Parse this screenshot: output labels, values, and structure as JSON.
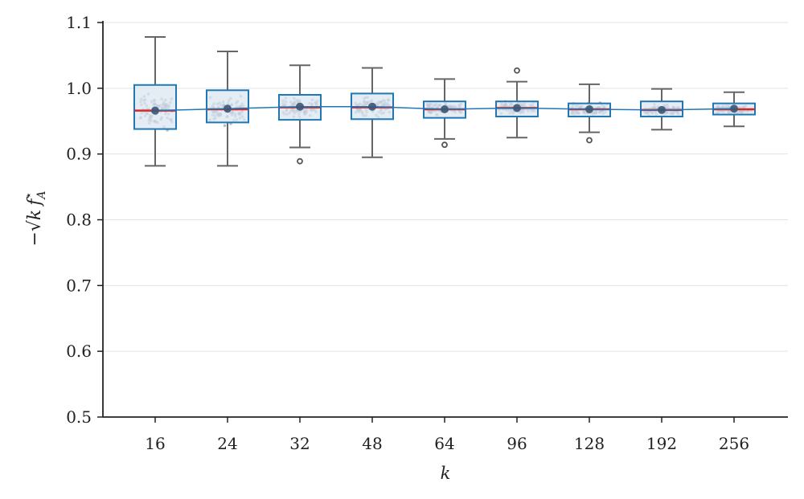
{
  "chart_data": {
    "type": "box",
    "categories": [
      "16",
      "24",
      "32",
      "48",
      "64",
      "96",
      "128",
      "192",
      "256"
    ],
    "xlabel": "k",
    "ylabel": {
      "prefix": "−√",
      "k": "k",
      "f": "f",
      "sub": "A",
      "sup": "⋆"
    },
    "ylim": [
      0.5,
      1.1
    ],
    "yticks": [
      "0.5",
      "0.6",
      "0.7",
      "0.8",
      "0.9",
      "1.0",
      "1.1"
    ],
    "grid": "horizontal",
    "boxes": [
      {
        "category": "16",
        "whislo": 0.882,
        "q1": 0.938,
        "median": 0.966,
        "q3": 1.005,
        "whishi": 1.078,
        "mean": 0.966,
        "outliers": []
      },
      {
        "category": "24",
        "whislo": 0.882,
        "q1": 0.948,
        "median": 0.968,
        "q3": 0.997,
        "whishi": 1.056,
        "mean": 0.969,
        "outliers": []
      },
      {
        "category": "32",
        "whislo": 0.91,
        "q1": 0.952,
        "median": 0.971,
        "q3": 0.99,
        "whishi": 1.035,
        "mean": 0.972,
        "outliers": [
          0.889
        ]
      },
      {
        "category": "48",
        "whislo": 0.895,
        "q1": 0.953,
        "median": 0.971,
        "q3": 0.992,
        "whishi": 1.031,
        "mean": 0.972,
        "outliers": []
      },
      {
        "category": "64",
        "whislo": 0.923,
        "q1": 0.955,
        "median": 0.968,
        "q3": 0.98,
        "whishi": 1.014,
        "mean": 0.968,
        "outliers": [
          0.914
        ]
      },
      {
        "category": "96",
        "whislo": 0.925,
        "q1": 0.957,
        "median": 0.97,
        "q3": 0.98,
        "whishi": 1.01,
        "mean": 0.97,
        "outliers": [
          1.027
        ]
      },
      {
        "category": "128",
        "whislo": 0.933,
        "q1": 0.957,
        "median": 0.968,
        "q3": 0.977,
        "whishi": 1.006,
        "mean": 0.968,
        "outliers": [
          0.921
        ]
      },
      {
        "category": "192",
        "whislo": 0.937,
        "q1": 0.957,
        "median": 0.967,
        "q3": 0.98,
        "whishi": 0.999,
        "mean": 0.967,
        "outliers": []
      },
      {
        "category": "256",
        "whislo": 0.942,
        "q1": 0.96,
        "median": 0.968,
        "q3": 0.977,
        "whishi": 0.994,
        "mean": 0.969,
        "outliers": []
      }
    ],
    "colors": {
      "box_edge": "#1f77b4",
      "box_fill": "#dbe6f0",
      "median": "#d62728",
      "mean_line": "#1f77b4",
      "mean_marker": "#3b5675",
      "whisker": "#666666",
      "points": "#5a6f87",
      "grid": "#e3e3e3",
      "axis": "#222222"
    }
  }
}
